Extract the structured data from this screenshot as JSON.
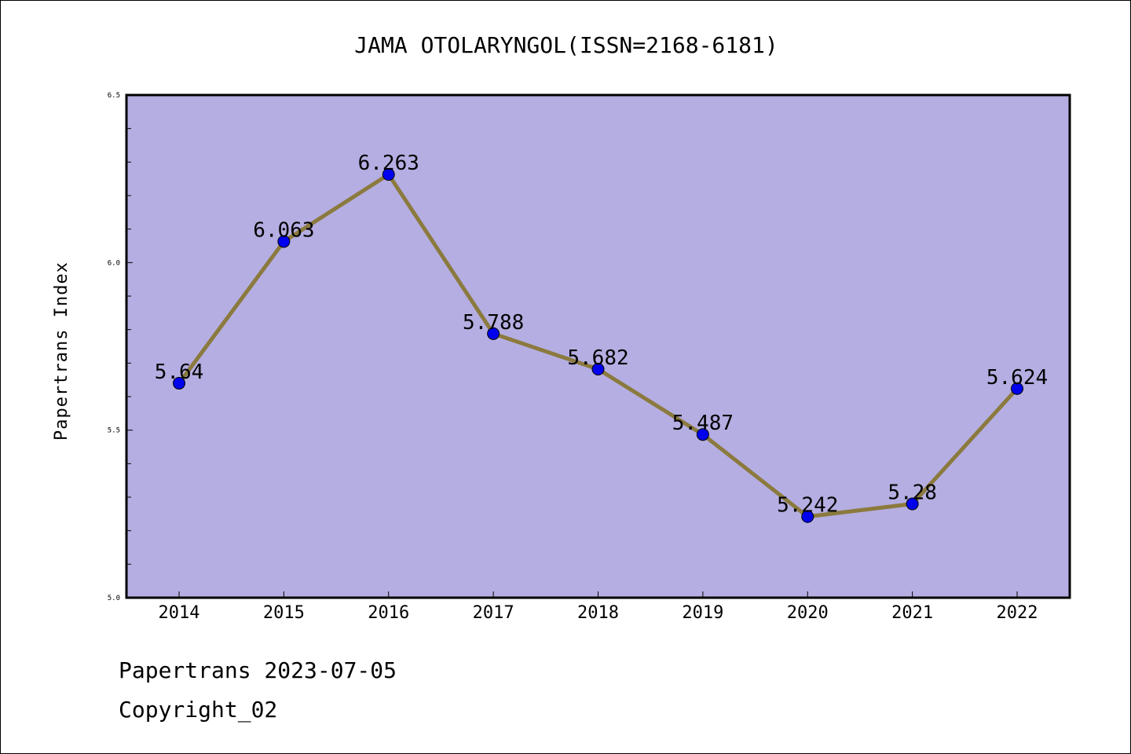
{
  "chart_data": {
    "type": "line",
    "title": "JAMA OTOLARYNGOL(ISSN=2168-6181)",
    "xlabel": "",
    "ylabel": "Papertrans Index",
    "categories": [
      "2014",
      "2015",
      "2016",
      "2017",
      "2018",
      "2019",
      "2020",
      "2021",
      "2022"
    ],
    "series": [
      {
        "values": [
          5.64,
          6.063,
          6.263,
          5.788,
          5.682,
          5.487,
          5.242,
          5.28,
          5.624
        ]
      }
    ],
    "data_labels": [
      "5.64",
      "6.063",
      "6.263",
      "5.788",
      "5.682",
      "5.487",
      "5.242",
      "5.28",
      "5.624"
    ],
    "ylim": [
      5.0,
      6.5
    ],
    "yticks": [
      "5.0",
      "5.5",
      "6.0",
      "6.5"
    ],
    "grid": false,
    "colors": {
      "plot_background": "#b5aee2",
      "line": "#8b7a3e",
      "marker": "#0000ee"
    }
  },
  "footer": {
    "date_text": "Papertrans 2023-07-05",
    "copyright_text": "Copyright_02"
  }
}
